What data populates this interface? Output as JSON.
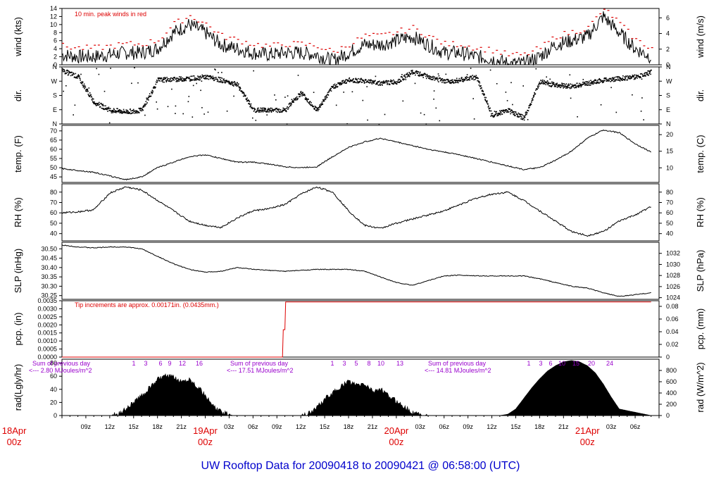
{
  "footer": "UW Rooftop Data for 20090418  to  20090421 @ 06:58:00  (UTC)",
  "colors": {
    "line": "#000000",
    "peak": "#dd0000",
    "annotation": "#dd0000",
    "solar": "#9900cc",
    "footer": "#0000cc",
    "date": "#dd0000"
  },
  "x_axis": {
    "hour_labels": [
      "09z",
      "12z",
      "15z",
      "18z",
      "21z",
      "03z",
      "06z",
      "09z",
      "12z",
      "15z",
      "18z",
      "21z",
      "03z",
      "06z",
      "09z",
      "12z",
      "15z",
      "18z",
      "21z",
      "03z",
      "06z"
    ],
    "date_labels": [
      {
        "day": "18Apr",
        "hour": "00z"
      },
      {
        "day": "19Apr",
        "hour": "00z"
      },
      {
        "day": "20Apr",
        "hour": "00z"
      },
      {
        "day": "21Apr",
        "hour": "00z"
      }
    ]
  },
  "chart_data": [
    {
      "type": "line",
      "panel": "wind",
      "ylabel_left": "wind (kts)",
      "ylabel_right": "wind (m/s)",
      "yticks_left": [
        "0",
        "2",
        "4",
        "6",
        "8",
        "10",
        "12",
        "14"
      ],
      "ylim_left": [
        0,
        14
      ],
      "yticks_right": [
        "0",
        "2",
        "4",
        "6"
      ],
      "ylim_right": [
        0,
        7.2
      ],
      "annotation": "10 min. peak winds in red",
      "x_hours": [
        6,
        8,
        10,
        12,
        14,
        16,
        18,
        20,
        22,
        24,
        26,
        28,
        30,
        32,
        34,
        36,
        38,
        40,
        42,
        44,
        46,
        48,
        50,
        52,
        54,
        56,
        58,
        60,
        62,
        64,
        66,
        68,
        70,
        72,
        74,
        76,
        78,
        80
      ],
      "series": [
        {
          "values": [
            2.5,
            2,
            2,
            2.5,
            3,
            3,
            4,
            8,
            10,
            8,
            5,
            4,
            3,
            2.5,
            3,
            3,
            2.5,
            1,
            3,
            5,
            5,
            6,
            7,
            5,
            3,
            3,
            2,
            1.5,
            0.3,
            0.3,
            2,
            5,
            6,
            7,
            12,
            8,
            4,
            2
          ]
        }
      ]
    },
    {
      "type": "scatter",
      "panel": "dir.",
      "ylabel_left": "dir.",
      "ylabel_right": "dir.",
      "yticks_left": [
        "N",
        "E",
        "S",
        "W",
        "N"
      ],
      "yticks_right": [
        "N",
        "E",
        "S",
        "W",
        "N"
      ],
      "ylim": [
        0,
        360
      ],
      "x_hours": [
        6,
        8,
        10,
        12,
        14,
        16,
        18,
        20,
        22,
        24,
        26,
        28,
        30,
        32,
        34,
        36,
        38,
        40,
        42,
        44,
        46,
        48,
        50,
        52,
        54,
        56,
        58,
        60,
        62,
        64,
        66,
        68,
        70,
        72,
        74,
        76,
        78,
        80
      ],
      "series": [
        {
          "values": [
            340,
            300,
            140,
            90,
            80,
            90,
            280,
            285,
            290,
            300,
            280,
            250,
            90,
            90,
            90,
            200,
            90,
            240,
            280,
            275,
            260,
            270,
            330,
            300,
            270,
            280,
            300,
            60,
            90,
            40,
            270,
            250,
            240,
            260,
            280,
            290,
            300,
            330
          ]
        }
      ]
    },
    {
      "type": "line",
      "panel": "temp.",
      "ylabel_left": "temp. (F)",
      "ylabel_right": "temp. (C)",
      "yticks_left": [
        "45",
        "50",
        "55",
        "60",
        "65",
        "70"
      ],
      "ylim_left": [
        42,
        73
      ],
      "yticks_right": [
        "10",
        "15",
        "20"
      ],
      "ylim_right": [
        5.6,
        22.8
      ],
      "x_hours": [
        6,
        8,
        10,
        12,
        14,
        16,
        18,
        20,
        22,
        24,
        26,
        28,
        30,
        32,
        34,
        36,
        38,
        40,
        42,
        44,
        46,
        48,
        50,
        52,
        54,
        56,
        58,
        60,
        62,
        64,
        66,
        68,
        70,
        72,
        74,
        76,
        78,
        80
      ],
      "series": [
        {
          "values": [
            49.5,
            48.5,
            47.5,
            45.5,
            43.5,
            45,
            50,
            53,
            56,
            57,
            55,
            53,
            53,
            52,
            50.5,
            50,
            50.5,
            56,
            61,
            64,
            66,
            64,
            62,
            60,
            58.5,
            57,
            55,
            53,
            51,
            49,
            50,
            54,
            59,
            66,
            70.5,
            69,
            63,
            58.5
          ]
        }
      ]
    },
    {
      "type": "line",
      "panel": "RH",
      "ylabel_left": "RH (%)",
      "ylabel_right": "RH (%)",
      "yticks_left": [
        "40",
        "50",
        "60",
        "70",
        "80"
      ],
      "ylim_left": [
        33,
        88
      ],
      "yticks_right": [
        "40",
        "50",
        "60",
        "70",
        "80"
      ],
      "ylim_right": [
        33,
        88
      ],
      "x_hours": [
        6,
        8,
        10,
        12,
        14,
        16,
        18,
        20,
        22,
        24,
        26,
        28,
        30,
        32,
        34,
        36,
        38,
        40,
        42,
        44,
        46,
        48,
        50,
        52,
        54,
        56,
        58,
        60,
        62,
        64,
        66,
        68,
        70,
        72,
        74,
        76,
        78,
        80
      ],
      "series": [
        {
          "values": [
            60,
            61,
            63,
            79,
            85,
            82,
            72,
            62,
            52,
            48,
            46,
            55,
            62,
            64,
            68,
            78,
            85,
            80,
            62,
            48,
            45,
            50,
            54,
            58,
            62,
            68,
            74,
            78,
            80,
            72,
            62,
            52,
            42,
            38,
            42,
            52,
            58,
            66
          ]
        }
      ]
    },
    {
      "type": "line",
      "panel": "SLP",
      "ylabel_left": "SLP (inHg)",
      "ylabel_right": "SLP (hPa)",
      "yticks_left": [
        "30.25",
        "30.30",
        "30.35",
        "30.40",
        "30.45",
        "30.50"
      ],
      "ylim_left": [
        30.23,
        30.535
      ],
      "yticks_right": [
        "1024",
        "1026",
        "1028",
        "1030",
        "1032"
      ],
      "ylim_right": [
        1023.7,
        1034.0
      ],
      "x_hours": [
        6,
        8,
        10,
        12,
        14,
        16,
        18,
        20,
        22,
        24,
        26,
        28,
        30,
        32,
        34,
        36,
        38,
        40,
        42,
        44,
        46,
        48,
        50,
        52,
        54,
        56,
        58,
        60,
        62,
        64,
        66,
        68,
        70,
        72,
        74,
        76,
        78,
        80
      ],
      "series": [
        {
          "values": [
            30.52,
            30.51,
            30.505,
            30.51,
            30.51,
            30.5,
            30.46,
            30.42,
            30.39,
            30.375,
            30.38,
            30.4,
            30.39,
            30.385,
            30.38,
            30.385,
            30.39,
            30.39,
            30.39,
            30.38,
            30.35,
            30.32,
            30.305,
            30.33,
            30.355,
            30.36,
            30.355,
            30.355,
            30.355,
            30.355,
            30.34,
            30.32,
            30.3,
            30.29,
            30.265,
            30.245,
            30.255,
            30.265
          ]
        }
      ]
    },
    {
      "type": "line",
      "panel": "pcp.",
      "ylabel_left": "pcp. (in)",
      "ylabel_right": "pcp. (mm)",
      "yticks_left": [
        "0.0000",
        "0.0005",
        "0.0010",
        "0.0015",
        "0.0020",
        "0.0025",
        "0.0030",
        "0.0035"
      ],
      "ylim_left": [
        0,
        0.0035
      ],
      "yticks_right": [
        "0",
        "0.02",
        "0.04",
        "0.06",
        "0.08"
      ],
      "ylim_right": [
        0,
        0.0889
      ],
      "annotation": "Tip increments are approx. 0.00171in. (0.0435mm.)",
      "x_hours": [
        6,
        33.7,
        33.8,
        34.0,
        34.1,
        80
      ],
      "series": [
        {
          "values": [
            0,
            0,
            0.0017,
            0.0017,
            0.00342,
            0.00342
          ]
        }
      ]
    },
    {
      "type": "area",
      "panel": "rad",
      "ylabel_left": "rad(Lgly/hr)",
      "ylabel_right": "rad (W/m^2)",
      "yticks_left": [
        "0",
        "20",
        "40",
        "60",
        "80"
      ],
      "ylim_left": [
        0,
        86
      ],
      "yticks_right": [
        "0",
        "200",
        "400",
        "600",
        "800"
      ],
      "ylim_right": [
        0,
        1000
      ],
      "solar_notes": [
        {
          "line1": "Sum of previous day",
          "line2": "<--- 2.80 MJoules/m^2",
          "hours": [
            "1",
            "3",
            "6",
            "9",
            "12",
            "16"
          ]
        },
        {
          "line1": "Sum of previous day",
          "line2": "<--- 17.51 MJoules/m^2",
          "hours": [
            "1",
            "3",
            "5",
            "8",
            "10",
            "13"
          ]
        },
        {
          "line1": "Sum of previous day",
          "line2": "<--- 14.81 MJoules/m^2",
          "hours": [
            "1",
            "3",
            "6",
            "10",
            "15",
            "20",
            "24"
          ]
        }
      ],
      "x_hours": [
        6,
        12,
        13,
        14,
        15,
        16,
        17,
        18,
        19,
        20,
        21,
        22,
        23,
        24,
        25,
        26,
        27,
        28,
        36,
        37,
        38,
        39,
        40,
        41,
        42,
        43,
        44,
        45,
        46,
        47,
        48,
        49,
        50,
        51,
        52,
        61,
        62,
        63,
        64,
        65,
        66,
        67,
        68,
        69,
        70,
        71,
        72,
        73,
        74,
        75,
        76,
        80
      ],
      "series": [
        {
          "values": [
            0,
            0,
            2,
            10,
            20,
            30,
            42,
            55,
            60,
            58,
            52,
            56,
            45,
            30,
            14,
            5,
            1,
            0,
            0,
            3,
            12,
            25,
            34,
            44,
            52,
            46,
            48,
            38,
            40,
            30,
            22,
            14,
            5,
            1,
            0,
            0,
            2,
            10,
            26,
            42,
            56,
            68,
            76,
            82,
            84,
            82,
            76,
            65,
            48,
            28,
            10,
            0
          ]
        }
      ]
    }
  ]
}
